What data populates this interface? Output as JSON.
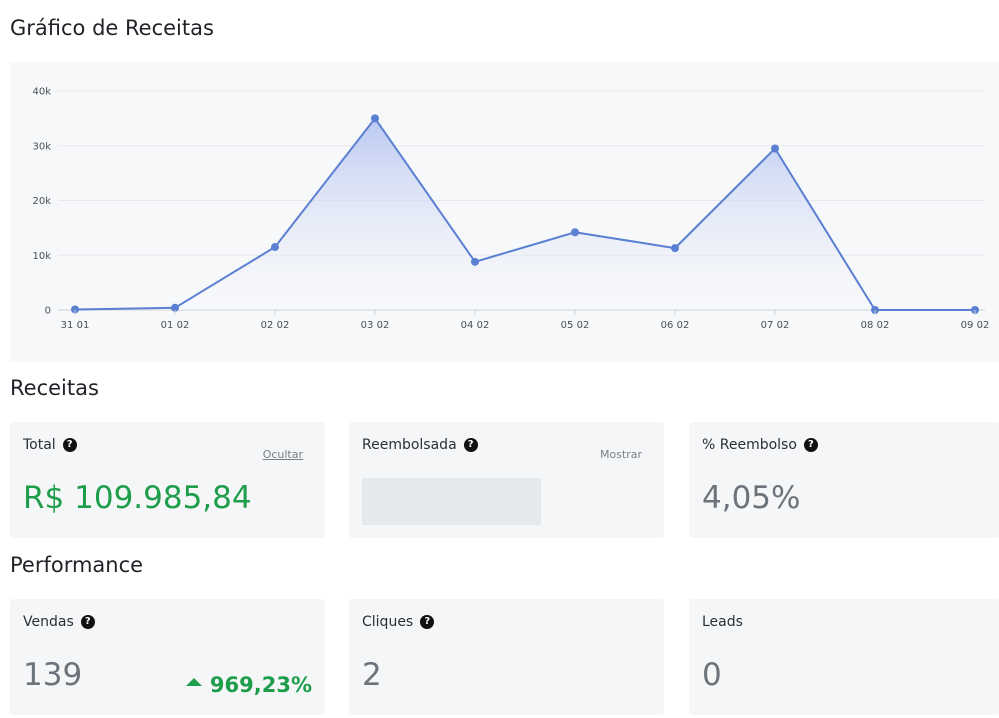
{
  "headings": {
    "chart": "Gráfico de Receitas",
    "revenue": "Receitas",
    "performance": "Performance"
  },
  "chart_data": {
    "type": "area",
    "categories": [
      "31 01",
      "01 02",
      "02 02",
      "03 02",
      "04 02",
      "05 02",
      "06 02",
      "07 02",
      "08 02",
      "09 02"
    ],
    "values": [
      100,
      400,
      11500,
      35000,
      8800,
      14200,
      11300,
      29500,
      0,
      0
    ],
    "y_ticks": [
      "0",
      "10k",
      "20k",
      "30k",
      "40k"
    ],
    "ylim": [
      0,
      40000
    ],
    "grid": true,
    "colors": {
      "line": "#5b7fd1",
      "fill": "#c9d4f5"
    }
  },
  "revenue": {
    "total": {
      "label": "Total",
      "toggle": "Ocultar",
      "value": "R$ 109.985,84"
    },
    "refunded": {
      "label": "Reembolsada",
      "toggle": "Mostrar"
    },
    "refund_pct": {
      "label": "% Reembolso",
      "value": "4,05%"
    }
  },
  "performance": {
    "sales": {
      "label": "Vendas",
      "value": "139",
      "delta": "969,23%"
    },
    "clicks": {
      "label": "Cliques",
      "value": "2"
    },
    "leads": {
      "label": "Leads",
      "value": "0"
    }
  },
  "help_icon_glyph": "?",
  "colors": {
    "positive": "#1e9e4a",
    "muted": "#6c737a"
  }
}
